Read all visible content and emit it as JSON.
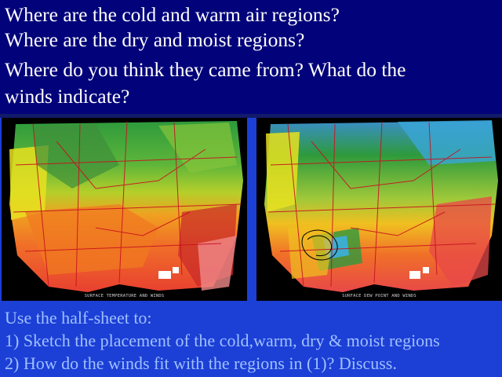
{
  "header": {
    "questions": [
      "Where are the cold and warm air regions?",
      "Where are the dry and moist regions?",
      "Where do you think they came from? What do the",
      "winds indicate?"
    ]
  },
  "maps": {
    "left_caption": "SURFACE TEMPERATURE AND WINDS",
    "right_caption": "SURFACE DEW POINT AND WINDS"
  },
  "instructions": {
    "intro": "Use the half-sheet to:",
    "items": [
      "1) Sketch the placement of the cold,warm, dry & moist regions",
      "2) How do the winds fit with the regions in (1)? Discuss."
    ]
  },
  "colors": {
    "header_bg": "#02027a",
    "main_bg": "#1c3fd6",
    "instruction_text": "#9fc0ff"
  }
}
